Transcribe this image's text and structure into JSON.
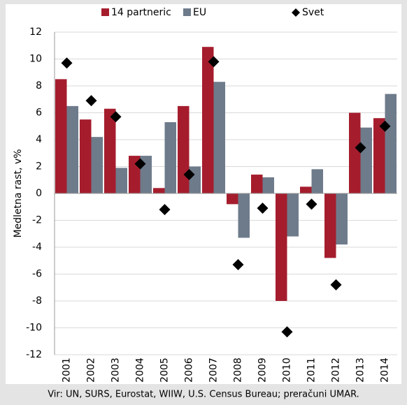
{
  "chart_data": {
    "type": "bar",
    "y_label": "Medletna rast, v%",
    "source": "Vir: UN, SURS, Eurostat, WIIW, U.S. Census Bureau; preračuni UMAR.",
    "categories": [
      "2001",
      "2002",
      "2003",
      "2004",
      "2005",
      "2006",
      "2007",
      "2008",
      "2009",
      "2010",
      "2011",
      "2012",
      "2013",
      "2014"
    ],
    "series": [
      {
        "name": "14 partneric",
        "type": "bar",
        "color": "#a51d2d",
        "values": [
          8.5,
          5.5,
          6.3,
          2.8,
          0.4,
          6.5,
          10.9,
          -0.8,
          1.4,
          -8.0,
          0.5,
          -4.8,
          6.0,
          5.6
        ]
      },
      {
        "name": "EU",
        "type": "bar",
        "color": "#6e7b8b",
        "values": [
          6.5,
          4.2,
          1.9,
          2.8,
          5.3,
          2.0,
          8.3,
          -3.3,
          1.2,
          -3.2,
          1.8,
          -3.8,
          4.9,
          7.4
        ]
      },
      {
        "name": "Svet",
        "type": "scatter",
        "color": "#000000",
        "values": [
          9.7,
          6.9,
          5.7,
          2.2,
          -1.2,
          1.4,
          9.8,
          -5.3,
          -1.1,
          -10.3,
          -0.8,
          -6.8,
          3.4,
          5.0
        ]
      }
    ],
    "ylim": [
      -12,
      12
    ],
    "yticks": [
      -12,
      -10,
      -8,
      -6,
      -4,
      -2,
      0,
      2,
      4,
      6,
      8,
      10,
      12
    ],
    "grid": true
  }
}
